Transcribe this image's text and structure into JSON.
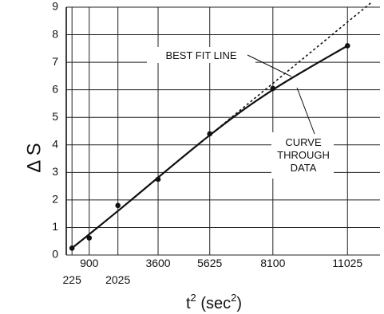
{
  "chart_data": {
    "type": "scatter",
    "xlabel": {
      "base": "t",
      "sup": "2",
      "unit_open": " (sec",
      "unit_sup": "2",
      "unit_close": ")"
    },
    "ylabel": "Δ S",
    "xlim": [
      0,
      12300
    ],
    "ylim": [
      0,
      9
    ],
    "grid": true,
    "x_ticks": [
      {
        "value": 225,
        "label": "225",
        "row": "lower"
      },
      {
        "value": 900,
        "label": "900",
        "row": "upper"
      },
      {
        "value": 2025,
        "label": "2025",
        "row": "lower"
      },
      {
        "value": 3600,
        "label": "3600",
        "row": "upper"
      },
      {
        "value": 5625,
        "label": "5625",
        "row": "upper"
      },
      {
        "value": 8100,
        "label": "8100",
        "row": "upper"
      },
      {
        "value": 11025,
        "label": "11025",
        "row": "upper"
      }
    ],
    "y_ticks": [
      {
        "value": 0,
        "label": "0"
      },
      {
        "value": 1,
        "label": "1"
      },
      {
        "value": 2,
        "label": "2"
      },
      {
        "value": 3,
        "label": "3"
      },
      {
        "value": 4,
        "label": "4"
      },
      {
        "value": 5,
        "label": "5"
      },
      {
        "value": 6,
        "label": "6"
      },
      {
        "value": 7,
        "label": "7"
      },
      {
        "value": 8,
        "label": "8"
      },
      {
        "value": 9,
        "label": "9"
      }
    ],
    "points": [
      {
        "x": 225,
        "y": 0.25
      },
      {
        "x": 900,
        "y": 0.62
      },
      {
        "x": 2025,
        "y": 1.8
      },
      {
        "x": 3600,
        "y": 2.75
      },
      {
        "x": 5625,
        "y": 4.4
      },
      {
        "x": 8100,
        "y": 6.05
      },
      {
        "x": 11025,
        "y": 7.6
      }
    ],
    "curve": [
      {
        "x": 225,
        "y": 0.25
      },
      {
        "x": 2025,
        "y": 1.6
      },
      {
        "x": 5625,
        "y": 4.35
      },
      {
        "x": 8100,
        "y": 6.0
      },
      {
        "x": 11025,
        "y": 7.6
      }
    ],
    "best_fit": {
      "from": {
        "x": 5625,
        "y": 4.35
      },
      "to": {
        "x": 12000,
        "y": 9.2
      }
    },
    "annotations": {
      "best_fit": [
        "BEST FIT LINE"
      ],
      "curve": [
        "CURVE",
        "THROUGH",
        "DATA"
      ]
    }
  }
}
